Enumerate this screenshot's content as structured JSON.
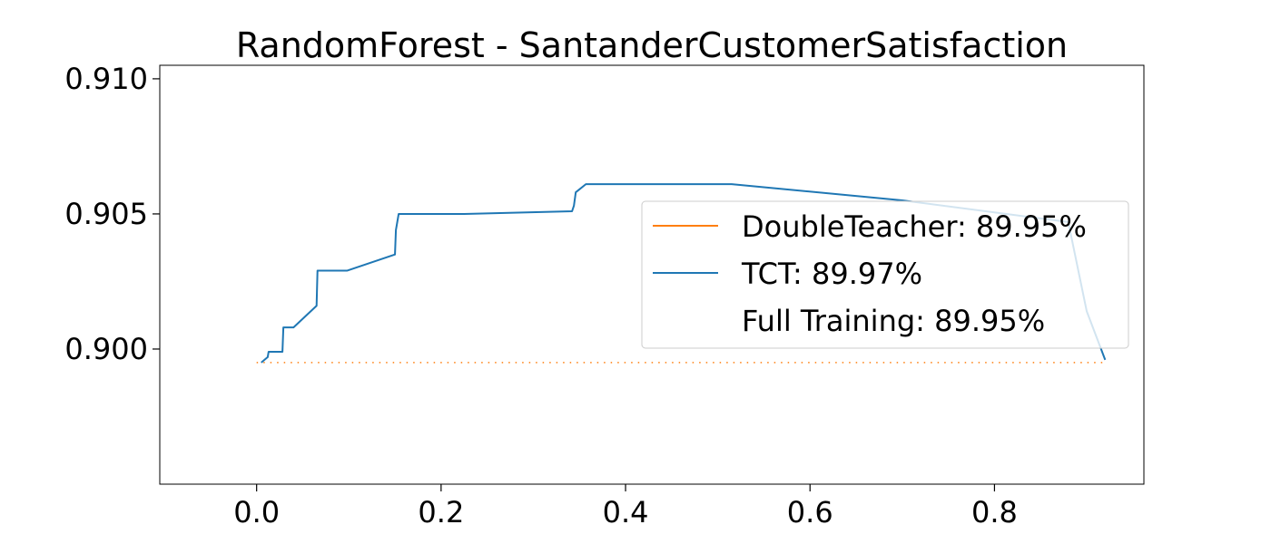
{
  "chart_data": {
    "type": "line",
    "title": "RandomForest - SantanderCustomerSatisfaction",
    "xlabel": "",
    "ylabel": "",
    "xlim": [
      -0.105,
      0.962
    ],
    "ylim": [
      0.895,
      0.9105
    ],
    "x_ticks": [
      0.0,
      0.2,
      0.4,
      0.6,
      0.8
    ],
    "x_tick_labels": [
      "0.0",
      "0.2",
      "0.4",
      "0.6",
      "0.8"
    ],
    "y_ticks": [
      0.9,
      0.905,
      0.91
    ],
    "y_tick_labels": [
      "0.900",
      "0.905",
      "0.910"
    ],
    "grid": false,
    "legend_placement": "right",
    "series": [
      {
        "name": "DoubleTeacher: 89.95%",
        "color": "#ff7f0e",
        "style": "dotted",
        "x": [
          0.0,
          0.92
        ],
        "y": [
          0.8995,
          0.8995
        ]
      },
      {
        "name": "TCT: 89.97%",
        "color": "#1f77b4",
        "style": "solid",
        "x": [
          0.005,
          0.012,
          0.013,
          0.028,
          0.029,
          0.04,
          0.065,
          0.066,
          0.098,
          0.15,
          0.151,
          0.154,
          0.225,
          0.342,
          0.344,
          0.346,
          0.357,
          0.515,
          0.7,
          0.88,
          0.9,
          0.92
        ],
        "y": [
          0.8995,
          0.8997,
          0.8999,
          0.8999,
          0.9008,
          0.9008,
          0.9016,
          0.9029,
          0.9029,
          0.9035,
          0.9044,
          0.905,
          0.905,
          0.9051,
          0.9053,
          0.9058,
          0.9061,
          0.9061,
          0.9055,
          0.9047,
          0.9014,
          0.8996
        ]
      },
      {
        "name": "Full Training: 89.95%",
        "color": "#000000",
        "style": "none",
        "x": [],
        "y": []
      }
    ]
  }
}
